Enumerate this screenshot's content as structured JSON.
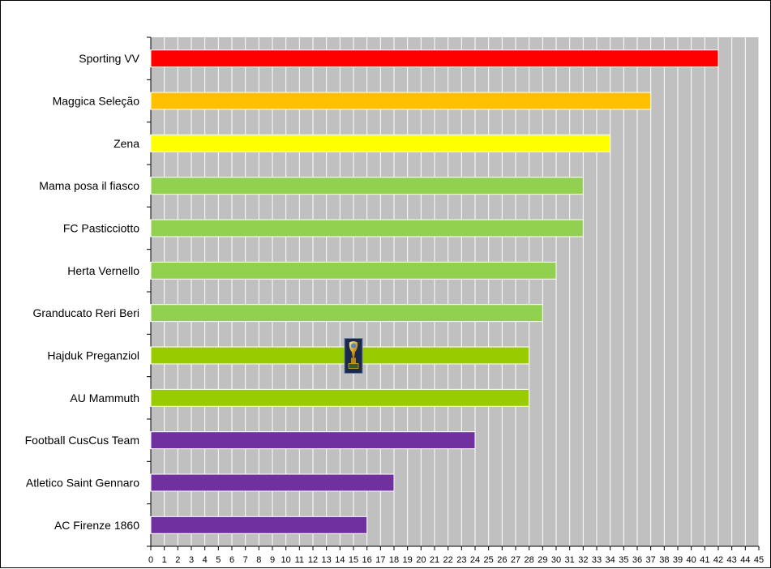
{
  "chart_data": {
    "type": "bar",
    "orientation": "horizontal",
    "categories": [
      "Sporting VV",
      "Maggica Seleção",
      "Zena",
      "Mama posa il fiasco",
      "FC Pasticciotto",
      "Herta Vernello",
      "Granducato Reri Beri",
      "Hajduk Preganziol",
      "AU Mammuth",
      "Football CusCus Team",
      "Atletico Saint Gennaro",
      "AC Firenze 1860"
    ],
    "values": [
      42,
      37,
      34,
      32,
      32,
      30,
      29,
      28,
      28,
      24,
      18,
      16
    ],
    "colors": [
      "#ff0000",
      "#ffc000",
      "#ffff00",
      "#92d050",
      "#92d050",
      "#92d050",
      "#92d050",
      "#99cc00",
      "#99cc00",
      "#7030a0",
      "#7030a0",
      "#7030a0"
    ],
    "xlim": [
      0,
      45
    ],
    "x_ticks": [
      0,
      1,
      2,
      3,
      4,
      5,
      6,
      7,
      8,
      9,
      10,
      11,
      12,
      13,
      14,
      15,
      16,
      17,
      18,
      19,
      20,
      21,
      22,
      23,
      24,
      25,
      26,
      27,
      28,
      29,
      30,
      31,
      32,
      33,
      34,
      35,
      36,
      37,
      38,
      39,
      40,
      41,
      42,
      43,
      44,
      45
    ],
    "grid": true,
    "plot_background": "#c0c0c0",
    "gridline_color": "#ffffff",
    "title": "",
    "xlabel": "",
    "ylabel": "",
    "annotation": {
      "icon": "trophy-icon",
      "category": "Hajduk Preganziol",
      "x_value": 15
    }
  }
}
